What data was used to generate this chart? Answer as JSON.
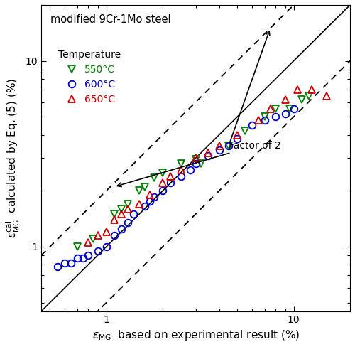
{
  "title": "modified 9Cr-1Mo steel",
  "xlim": [
    0.45,
    20
  ],
  "ylim": [
    0.45,
    20
  ],
  "annotation_text": "Factor of 2",
  "data_550": [
    [
      0.7,
      1.0
    ],
    [
      0.85,
      1.1
    ],
    [
      1.1,
      1.5
    ],
    [
      1.2,
      1.6
    ],
    [
      1.3,
      1.7
    ],
    [
      1.5,
      2.0
    ],
    [
      1.6,
      2.1
    ],
    [
      1.8,
      2.35
    ],
    [
      2.0,
      2.5
    ],
    [
      2.5,
      2.8
    ],
    [
      3.0,
      2.95
    ],
    [
      3.2,
      2.8
    ],
    [
      4.5,
      3.5
    ],
    [
      5.5,
      4.2
    ],
    [
      7.0,
      5.0
    ],
    [
      8.0,
      5.5
    ],
    [
      9.5,
      5.5
    ],
    [
      11.0,
      6.2
    ],
    [
      12.0,
      6.5
    ]
  ],
  "data_600": [
    [
      0.55,
      0.78
    ],
    [
      0.6,
      0.82
    ],
    [
      0.65,
      0.82
    ],
    [
      0.7,
      0.87
    ],
    [
      0.75,
      0.87
    ],
    [
      0.8,
      0.9
    ],
    [
      0.9,
      0.95
    ],
    [
      1.0,
      1.0
    ],
    [
      1.1,
      1.15
    ],
    [
      1.2,
      1.25
    ],
    [
      1.3,
      1.35
    ],
    [
      1.4,
      1.5
    ],
    [
      1.6,
      1.65
    ],
    [
      1.7,
      1.75
    ],
    [
      1.8,
      1.85
    ],
    [
      2.0,
      2.0
    ],
    [
      2.2,
      2.2
    ],
    [
      2.5,
      2.4
    ],
    [
      2.8,
      2.6
    ],
    [
      3.0,
      2.8
    ],
    [
      3.5,
      3.1
    ],
    [
      4.0,
      3.3
    ],
    [
      4.5,
      3.5
    ],
    [
      5.0,
      3.8
    ],
    [
      6.0,
      4.5
    ],
    [
      7.0,
      4.8
    ],
    [
      8.0,
      5.0
    ],
    [
      9.0,
      5.2
    ],
    [
      10.0,
      5.5
    ]
  ],
  "data_650": [
    [
      0.8,
      1.05
    ],
    [
      0.9,
      1.15
    ],
    [
      1.0,
      1.2
    ],
    [
      1.1,
      1.4
    ],
    [
      1.2,
      1.5
    ],
    [
      1.3,
      1.6
    ],
    [
      1.5,
      1.7
    ],
    [
      1.7,
      1.9
    ],
    [
      2.0,
      2.2
    ],
    [
      2.2,
      2.4
    ],
    [
      2.5,
      2.6
    ],
    [
      3.0,
      3.0
    ],
    [
      3.5,
      3.2
    ],
    [
      4.0,
      3.5
    ],
    [
      5.0,
      4.0
    ],
    [
      6.5,
      4.8
    ],
    [
      7.5,
      5.5
    ],
    [
      9.0,
      6.2
    ],
    [
      10.5,
      7.0
    ],
    [
      12.5,
      7.0
    ],
    [
      15.0,
      6.5
    ]
  ],
  "color_550": "#008000",
  "color_600": "#0000cc",
  "color_650": "#cc0000"
}
